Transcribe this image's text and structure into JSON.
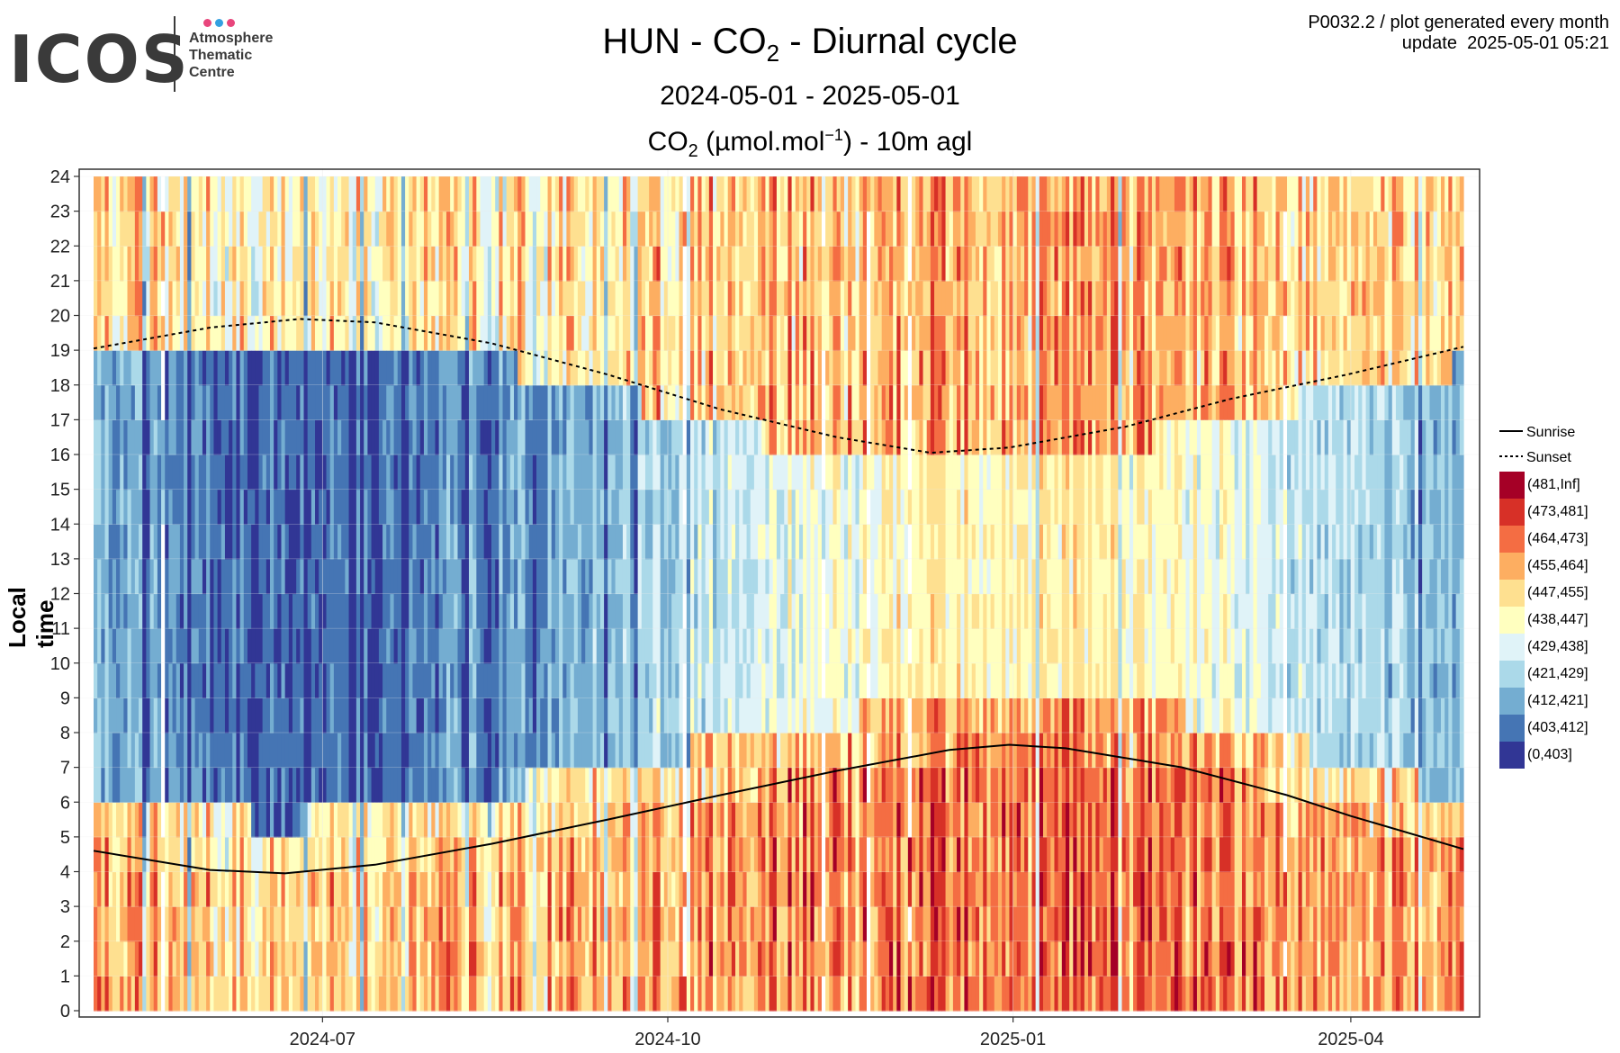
{
  "logo": {
    "text": "ICOS",
    "lines": [
      "Atmosphere",
      "Thematic",
      "Centre"
    ],
    "dot_colors": [
      "#e8467c",
      "#34a0e0",
      "#e8467c"
    ]
  },
  "header": {
    "title_prefix": "HUN - CO",
    "title_sub": "2",
    "title_suffix": " - Diurnal cycle",
    "period": "2024-05-01 - 2025-05-01",
    "variable_prefix": "CO",
    "variable_sub": "2",
    "variable_middle": " (µmol.mol",
    "variable_sup": "−1",
    "variable_suffix": ") - 10m agl",
    "meta_line1": "P0032.2 / plot generated every month",
    "meta_line2": "update  2025-05-01 05:21"
  },
  "chart_data": {
    "type": "heatmap",
    "title": "HUN - CO2 - Diurnal cycle",
    "subtitle": "2024-05-01 - 2025-05-01",
    "value_label": "CO2 (µmol.mol−1) - 10m agl",
    "ylabel": "Local time",
    "xlabel": "",
    "x_range": [
      "2024-05-01",
      "2025-05-01"
    ],
    "x_ticks": [
      "2024-07",
      "2024-10",
      "2025-01",
      "2025-04"
    ],
    "x_tick_dates": [
      "2024-07-01",
      "2024-10-01",
      "2025-01-01",
      "2025-04-01"
    ],
    "ylim": [
      0,
      24
    ],
    "y_ticks": [
      0,
      1,
      2,
      3,
      4,
      5,
      6,
      7,
      8,
      9,
      10,
      11,
      12,
      13,
      14,
      15,
      16,
      17,
      18,
      19,
      20,
      21,
      22,
      23,
      24
    ],
    "grid": true,
    "legend_position": "right",
    "bins": [
      {
        "label": "(481,Inf]",
        "color": "#a50026"
      },
      {
        "label": "(473,481]",
        "color": "#d73027"
      },
      {
        "label": "(464,473]",
        "color": "#f46d43"
      },
      {
        "label": "(455,464]",
        "color": "#fdae61"
      },
      {
        "label": "(447,455]",
        "color": "#fee090"
      },
      {
        "label": "(438,447]",
        "color": "#ffffbf"
      },
      {
        "label": "(429,438]",
        "color": "#e0f3f8"
      },
      {
        "label": "(421,429]",
        "color": "#abd9e9"
      },
      {
        "label": "(412,421]",
        "color": "#74add1"
      },
      {
        "label": "(403,412]",
        "color": "#4575b4"
      },
      {
        "label": "(0,403]",
        "color": "#313695"
      }
    ],
    "lines": [
      {
        "name": "Sunrise",
        "style": "solid",
        "points": [
          [
            "2024-05-01",
            4.6
          ],
          [
            "2024-06-01",
            4.05
          ],
          [
            "2024-06-21",
            3.95
          ],
          [
            "2024-07-15",
            4.2
          ],
          [
            "2024-08-15",
            4.8
          ],
          [
            "2024-09-15",
            5.5
          ],
          [
            "2024-10-15",
            6.2
          ],
          [
            "2024-11-15",
            6.9
          ],
          [
            "2024-12-15",
            7.5
          ],
          [
            "2024-12-31",
            7.65
          ],
          [
            "2025-01-15",
            7.55
          ],
          [
            "2025-02-15",
            7.0
          ],
          [
            "2025-03-15",
            6.2
          ],
          [
            "2025-04-01",
            5.6
          ],
          [
            "2025-05-01",
            4.65
          ]
        ]
      },
      {
        "name": "Sunset",
        "style": "dashed",
        "points": [
          [
            "2024-05-01",
            19.05
          ],
          [
            "2024-06-01",
            19.65
          ],
          [
            "2024-06-25",
            19.9
          ],
          [
            "2024-07-15",
            19.8
          ],
          [
            "2024-08-15",
            19.2
          ],
          [
            "2024-09-15",
            18.3
          ],
          [
            "2024-10-15",
            17.3
          ],
          [
            "2024-11-15",
            16.5
          ],
          [
            "2024-12-10",
            16.05
          ],
          [
            "2024-12-31",
            16.2
          ],
          [
            "2025-01-31",
            16.8
          ],
          [
            "2025-02-28",
            17.6
          ],
          [
            "2025-03-31",
            18.3
          ],
          [
            "2025-05-01",
            19.1
          ]
        ]
      }
    ]
  }
}
